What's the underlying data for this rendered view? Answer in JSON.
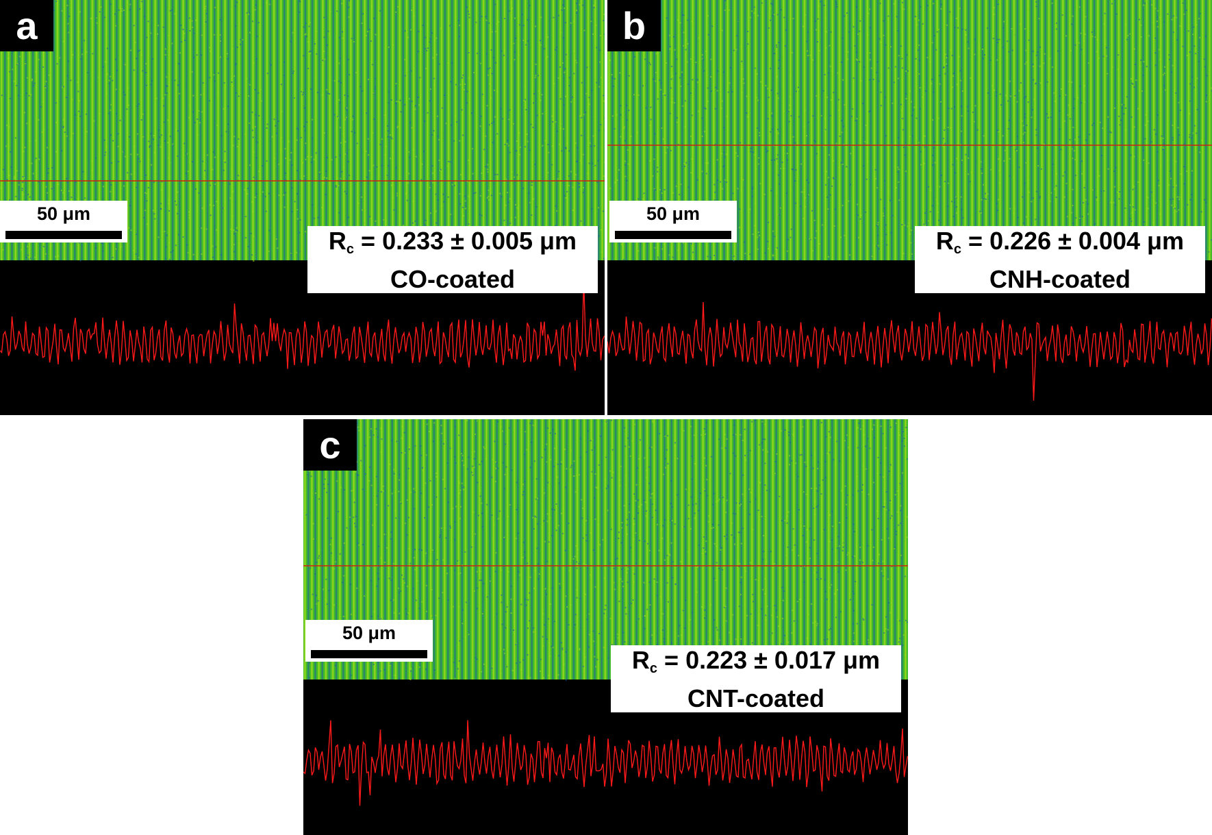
{
  "panels": [
    {
      "id": "a",
      "letter": "a",
      "scale_label": "50 μm",
      "roughness_symbol": "R",
      "roughness_subscript": "c",
      "roughness_value": " = 0.233 ± 0.005 μm",
      "sample": "CO-coated"
    },
    {
      "id": "b",
      "letter": "b",
      "scale_label": "50 μm",
      "roughness_symbol": "R",
      "roughness_subscript": "c",
      "roughness_value": " = 0.226 ± 0.004 μm",
      "sample": "CNH-coated"
    },
    {
      "id": "c",
      "letter": "c",
      "scale_label": "50 μm",
      "roughness_symbol": "R",
      "roughness_subscript": "c",
      "roughness_value": " = 0.223 ± 0.017 μm",
      "sample": "CNT-coated"
    }
  ],
  "colors": {
    "stripe_bright": "#9cdc1a",
    "stripe_green": "#3fb82a",
    "stripe_blue": "#1f5fa0",
    "profile_line": "#ff1a1a",
    "scan_line": "#d02010",
    "background": "#000000"
  }
}
